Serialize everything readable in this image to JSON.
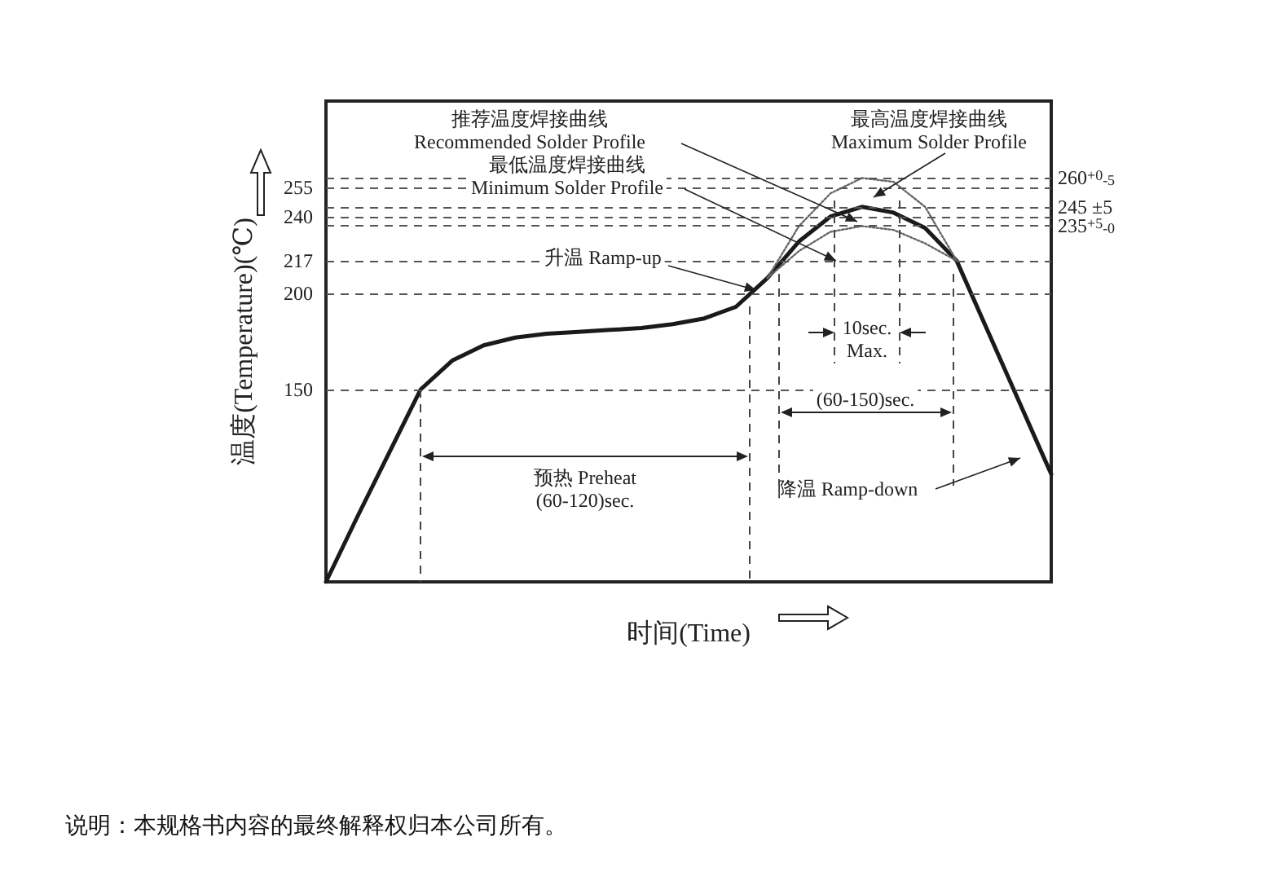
{
  "chart_data": {
    "type": "line",
    "xlabel": "时间(Time)",
    "ylabel": "温度(Temperature)(℃)",
    "categories": [
      null,
      null,
      null,
      null,
      null,
      null,
      null,
      null,
      null,
      null,
      null,
      null,
      null,
      null,
      null,
      null,
      null,
      null,
      null,
      null,
      null,
      null,
      null,
      null
    ],
    "ylim": [
      50,
      300
    ],
    "yticks": [
      150,
      200,
      217,
      240,
      255
    ],
    "grid": false,
    "marker": "none",
    "series": [
      {
        "color": "#1a1a1a",
        "line_style": "solid",
        "values": [
          50,
          84,
          117,
          150,
          165,
          173,
          177,
          179,
          180,
          181,
          182,
          184,
          187,
          193,
          208,
          227,
          240,
          245,
          242,
          234,
          217,
          180,
          143,
          106
        ]
      },
      {
        "color": "#666666",
        "line_style": "dotted",
        "values": [
          null,
          null,
          null,
          null,
          null,
          null,
          null,
          null,
          null,
          null,
          null,
          null,
          null,
          null,
          208,
          235,
          252,
          260,
          258,
          245,
          217,
          null,
          null,
          null
        ]
      },
      {
        "color": "#666666",
        "line_style": "dotted",
        "values": [
          null,
          null,
          null,
          null,
          null,
          null,
          null,
          null,
          null,
          null,
          null,
          null,
          null,
          null,
          208,
          222,
          232,
          235,
          233,
          226,
          217,
          null,
          null,
          null
        ]
      }
    ],
    "ref_lines": [
      {
        "axis": "y",
        "value": 255,
        "label": null
      },
      {
        "axis": "y",
        "value": 240,
        "label": null
      },
      {
        "axis": "y",
        "value": 217,
        "label": null
      },
      {
        "axis": "y",
        "value": 200,
        "label": null
      },
      {
        "axis": "y",
        "value": 150,
        "label": null
      },
      {
        "axis": "y",
        "value": 260,
        "label": "260$^{+0}$$_{-5}$"
      },
      {
        "axis": "y",
        "value": 245,
        "label": "245 ±5"
      },
      {
        "axis": "y",
        "value": 235,
        "label": "235$^{+5}$$_{-0}$"
      }
    ],
    "annotations": [
      "推荐温度焊接曲线\nRecommended Solder Profile",
      "最低温度焊接曲线\nMinimum Solder Profile",
      "最高温度焊接曲线\nMaximum Solder Profile",
      "升温 Ramp-up",
      "降温 Ramp-down",
      "预热 Preheat\n(60-120)sec.",
      "(60-150)sec.",
      "10sec.\nMax.",
      "说明：本规格书内容的最终解释权归本公司所有。"
    ]
  }
}
